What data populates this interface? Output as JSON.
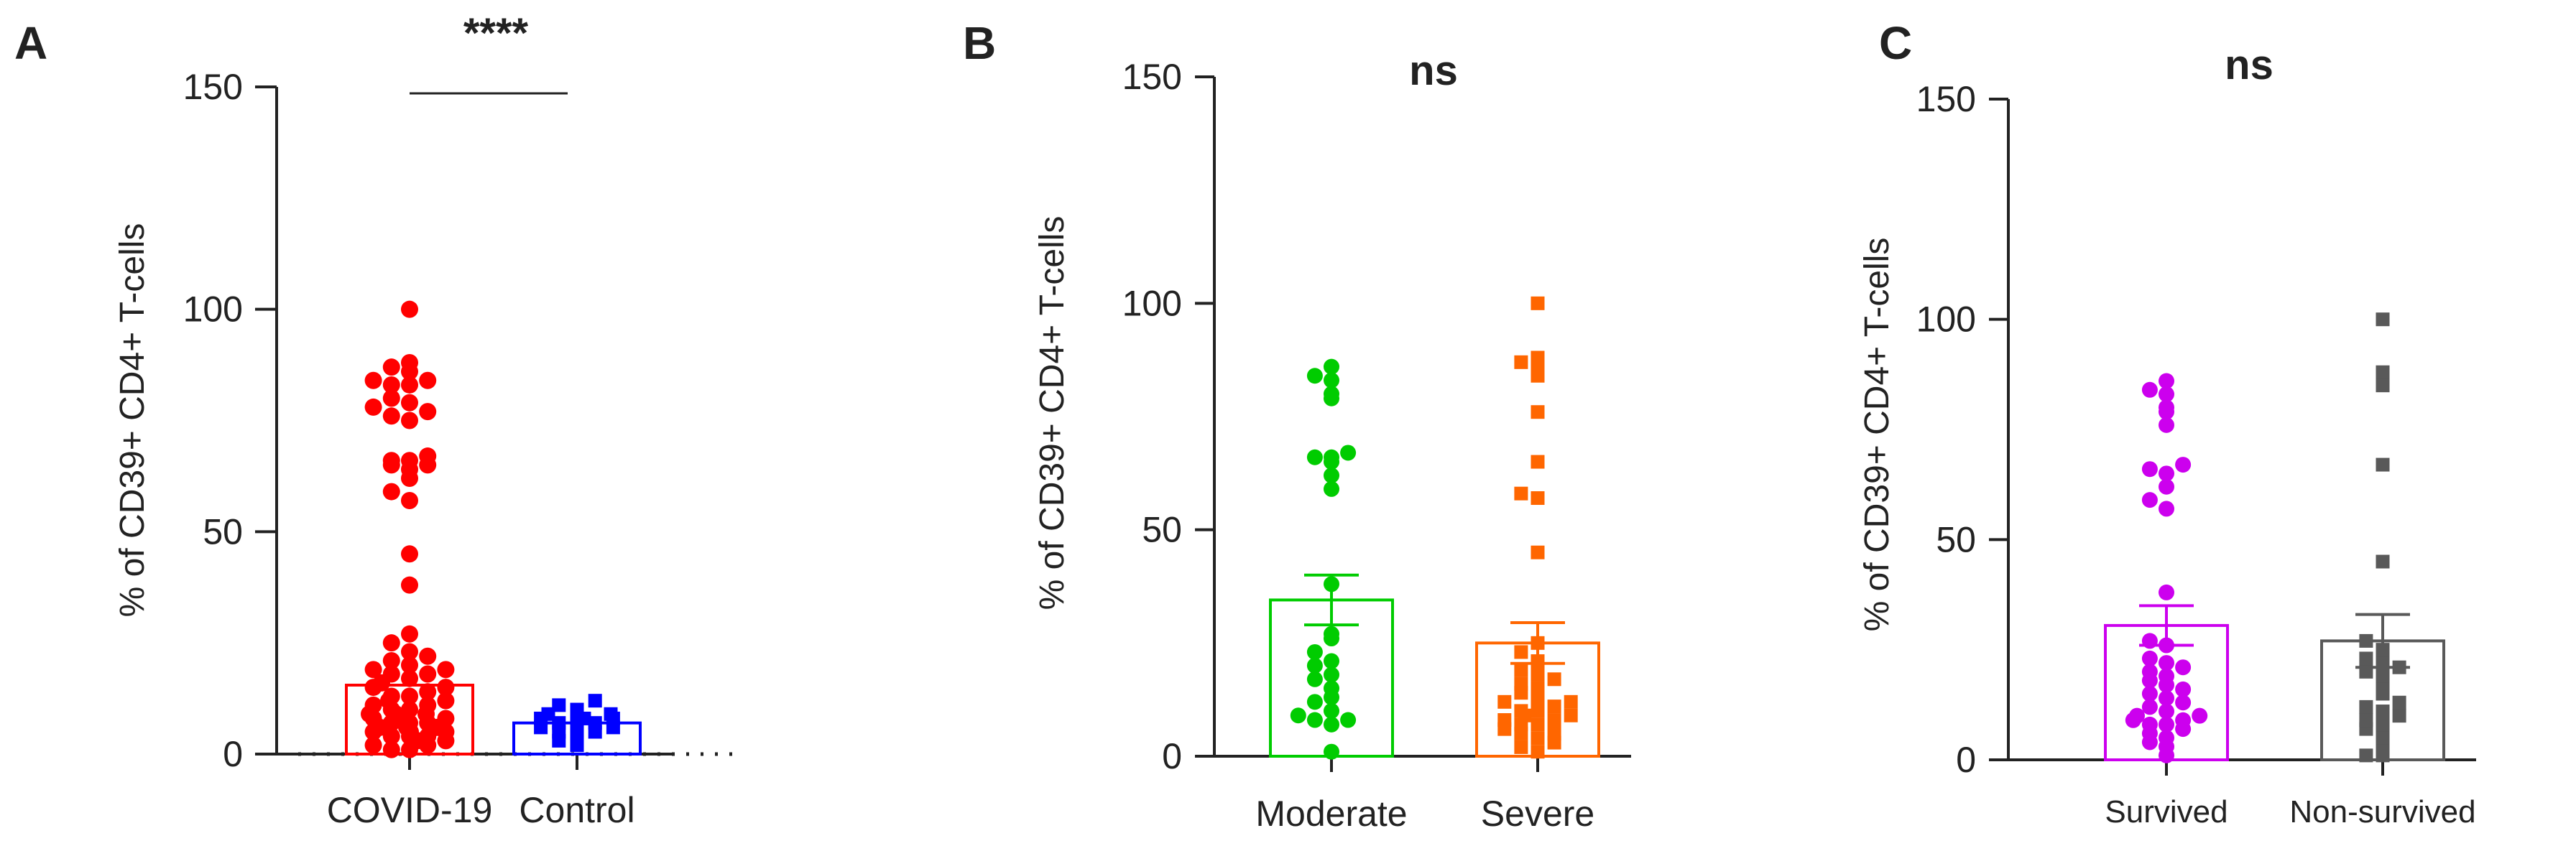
{
  "chart_data": [
    {
      "type": "scatter",
      "panel": "A",
      "ylabel": "% of  CD39+ CD4+ T-cells",
      "ylim": [
        0,
        150
      ],
      "yticks": [
        0,
        50,
        100,
        150
      ],
      "significance": "****",
      "groups": [
        {
          "name": "COVID-19",
          "color": "#ff0000",
          "marker": "circle",
          "mean": 15.5,
          "points": [
            100,
            88,
            87,
            86,
            84,
            84,
            83,
            83,
            80,
            79,
            78,
            77,
            76,
            75,
            67,
            66,
            66,
            65,
            65,
            64,
            62,
            59,
            57,
            45,
            38,
            27,
            25,
            23,
            22,
            21,
            20,
            19,
            19,
            18,
            18,
            17,
            16,
            15,
            15,
            14,
            13,
            13,
            12,
            12,
            11,
            11,
            10,
            10,
            9,
            9,
            9,
            8,
            8,
            8,
            7,
            7,
            7,
            6,
            6,
            6,
            5,
            5,
            5,
            4,
            4,
            4,
            3,
            3,
            2,
            2,
            1,
            1
          ]
        },
        {
          "name": "Control",
          "color": "#0000ff",
          "marker": "square",
          "mean": 7,
          "points": [
            12,
            11,
            10,
            9,
            9,
            8,
            8,
            8,
            7,
            7,
            7,
            6,
            6,
            5,
            5,
            4,
            3,
            2
          ]
        }
      ]
    },
    {
      "type": "scatter",
      "panel": "B",
      "ylabel": "% of CD39+ CD4+ T-cells",
      "ylim": [
        0,
        150
      ],
      "yticks": [
        0,
        50,
        100,
        150
      ],
      "significance": "ns",
      "groups": [
        {
          "name": "Moderate",
          "color": "#00cc00",
          "marker": "circle",
          "mean": 34.5,
          "sem": 5.5,
          "points": [
            86,
            84,
            83,
            80,
            79,
            67,
            66,
            66,
            65,
            62,
            59,
            38,
            27,
            26,
            23,
            21,
            20,
            18,
            17,
            15,
            13,
            12,
            10,
            9,
            8,
            8,
            7,
            1
          ]
        },
        {
          "name": "Severe",
          "color": "#ff6600",
          "marker": "square",
          "mean": 25,
          "sem": 4.5,
          "points": [
            100,
            88,
            87,
            85,
            84,
            76,
            65,
            58,
            57,
            45,
            25,
            23,
            21,
            19,
            18,
            17,
            16,
            15,
            14,
            13,
            12,
            12,
            11,
            10,
            10,
            9,
            9,
            8,
            8,
            7,
            7,
            6,
            5,
            5,
            4,
            3,
            2,
            1
          ]
        }
      ]
    },
    {
      "type": "scatter",
      "panel": "C",
      "ylabel": "% of CD39+ CD4+ T-cells",
      "ylim": [
        0,
        150
      ],
      "yticks": [
        0,
        50,
        100,
        150
      ],
      "significance": "ns",
      "groups": [
        {
          "name": "Survived",
          "color": "#cc00ee",
          "marker": "circle",
          "mean": 30.5,
          "sem": 4.5,
          "points": [
            86,
            84,
            83,
            80,
            79,
            76,
            67,
            66,
            65,
            62,
            59,
            57,
            38,
            27,
            26,
            23,
            22,
            21,
            20,
            19,
            18,
            17,
            16,
            15,
            14,
            13,
            12,
            11,
            10,
            10,
            9,
            9,
            8,
            8,
            7,
            6,
            5,
            4,
            3,
            1
          ]
        },
        {
          "name": "Non-survived",
          "color": "#595959",
          "marker": "square",
          "mean": 27,
          "sem": 6,
          "points": [
            100,
            88,
            85,
            67,
            45,
            27,
            25,
            23,
            22,
            21,
            20,
            19,
            17,
            15,
            13,
            12,
            11,
            10,
            9,
            8,
            7,
            5,
            3,
            1,
            1
          ]
        }
      ]
    }
  ]
}
